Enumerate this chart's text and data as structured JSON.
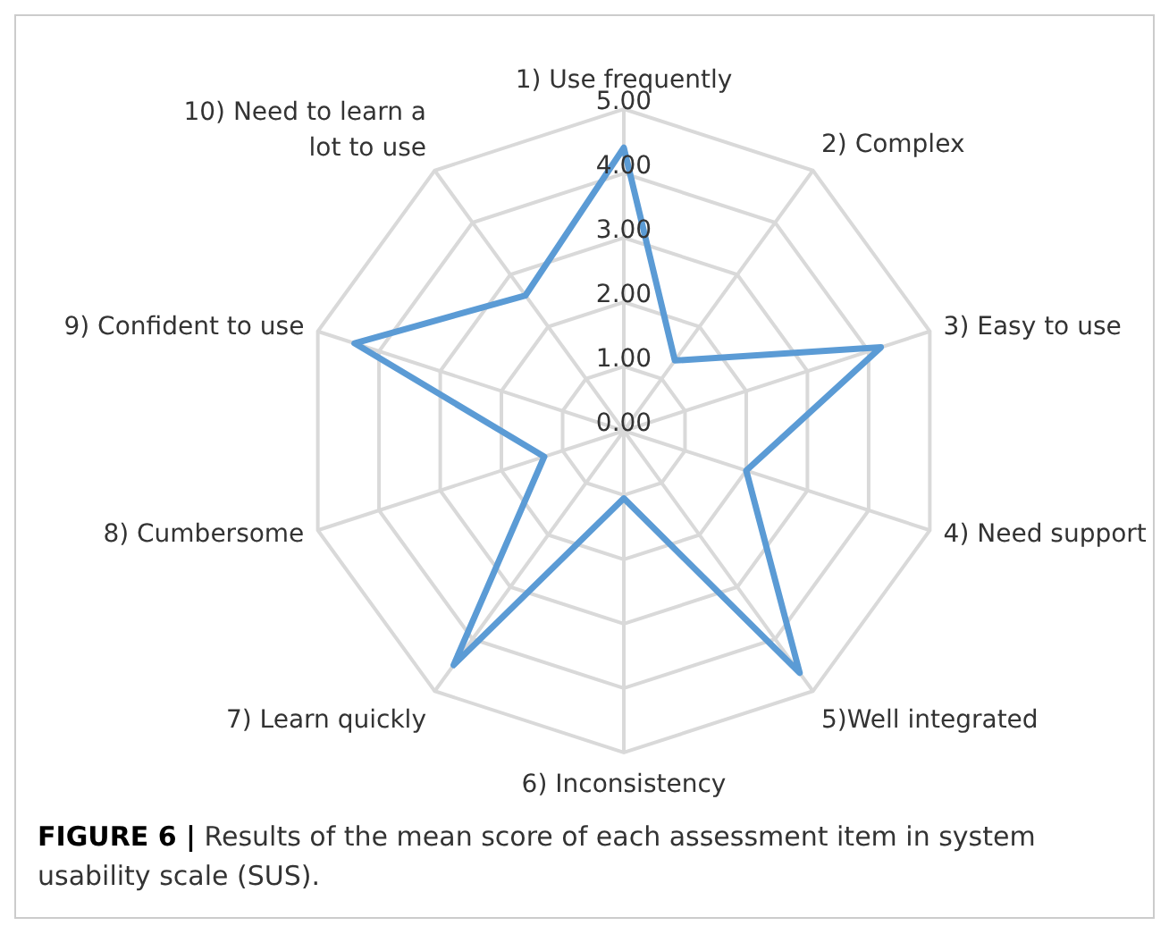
{
  "chart_data": {
    "type": "radar",
    "categories": [
      "1) Use frequently",
      "2) Complex",
      "3) Easy to use",
      "4) Need support",
      "5)Well integrated",
      "6) Inconsistency",
      "7) Learn quickly",
      "8) Cumbersome",
      "9) Confident to use",
      "10) Need to learn a lot to use"
    ],
    "series": [
      {
        "color": "#5b9bd5",
        "values": [
          4.4,
          1.35,
          4.2,
          2.0,
          4.65,
          1.05,
          4.5,
          1.3,
          4.4,
          2.6
        ]
      }
    ],
    "ylim": [
      0,
      5
    ],
    "yticks": [
      {
        "value": 0,
        "label": "0.00"
      },
      {
        "value": 1,
        "label": "1.00"
      },
      {
        "value": 2,
        "label": "2.00"
      },
      {
        "value": 3,
        "label": "3.00"
      },
      {
        "value": 4,
        "label": "4.00"
      },
      {
        "value": 5,
        "label": "5.00"
      }
    ],
    "grid": true,
    "legend": false,
    "marker": "none",
    "annotations": [
      "FIGURE 6 | Results of the mean score of each assessment item in system usability scale (SUS)."
    ]
  }
}
